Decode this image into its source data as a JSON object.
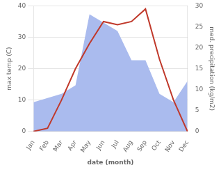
{
  "chart_data": {
    "type": "line",
    "xlabel": "date (month)",
    "ylabel": "max temp (C)",
    "y2label": "med. precipitation (kg/m2)",
    "categories": [
      "Jan",
      "Feb",
      "Mar",
      "Apr",
      "May",
      "Jun",
      "Jul",
      "Aug",
      "Sep",
      "Oct",
      "Nov",
      "Dec"
    ],
    "series": [
      {
        "type": "area",
        "color": "#aabbee",
        "axis": "y2",
        "values": [
          7,
          8,
          9,
          11,
          28,
          26,
          24,
          17,
          17,
          9,
          7,
          12
        ]
      },
      {
        "type": "line",
        "color": "#c0392b",
        "values": [
          0,
          1,
          10,
          20,
          28,
          35,
          34,
          35,
          39,
          23,
          10,
          0
        ]
      }
    ],
    "ylim": [
      0,
      40
    ],
    "yticks": [
      0,
      10,
      20,
      30,
      40
    ],
    "y2lim": [
      0,
      30
    ],
    "y2ticks": [
      0,
      5,
      10,
      15,
      20,
      25,
      30
    ],
    "grid": "y"
  }
}
